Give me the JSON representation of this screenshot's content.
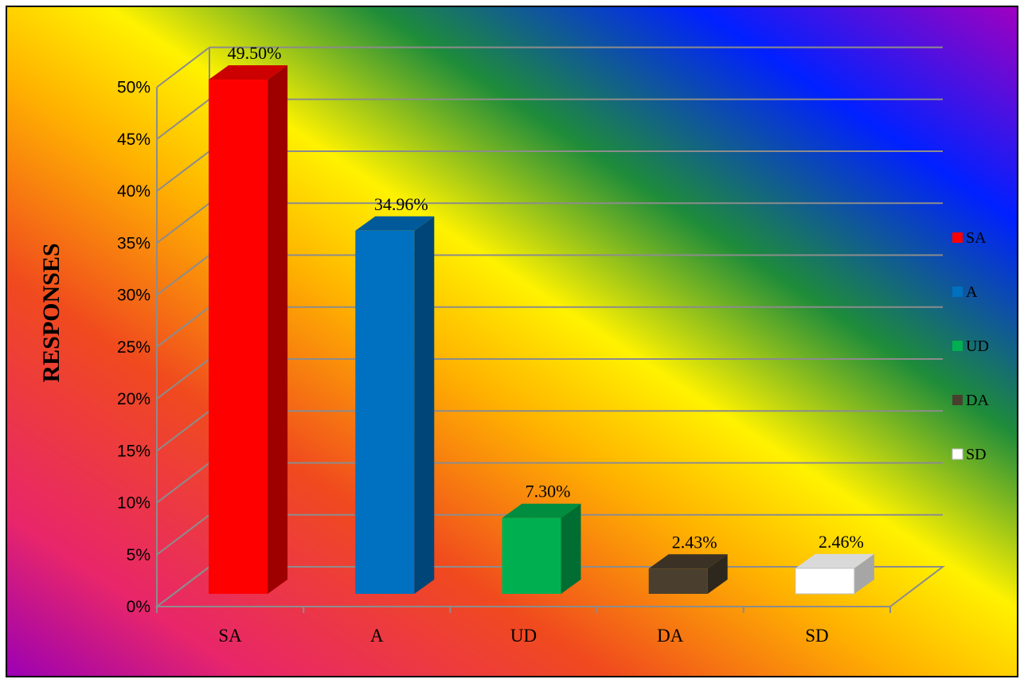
{
  "chart_data": {
    "type": "bar",
    "style": "3d-column",
    "title": "",
    "xlabel": "",
    "ylabel": "RESPONSES",
    "ylim": [
      0,
      50
    ],
    "y_unit": "%",
    "yticks": [
      "0%",
      "5%",
      "10%",
      "15%",
      "20%",
      "25%",
      "30%",
      "35%",
      "40%",
      "45%",
      "50%"
    ],
    "categories": [
      "SA",
      "A",
      "UD",
      "DA",
      "SD"
    ],
    "values": [
      49.5,
      34.96,
      7.3,
      2.43,
      2.46
    ],
    "data_labels": [
      "49.50%",
      "34.96%",
      "7.30%",
      "2.43%",
      "2.46%"
    ],
    "colors": [
      "#FF0000",
      "#0070C0",
      "#00B050",
      "#4A3F2E",
      "#FFFFFF"
    ],
    "grid": true,
    "legend": {
      "position": "right",
      "entries": [
        "SA",
        "A",
        "UD",
        "DA",
        "SD"
      ]
    }
  }
}
